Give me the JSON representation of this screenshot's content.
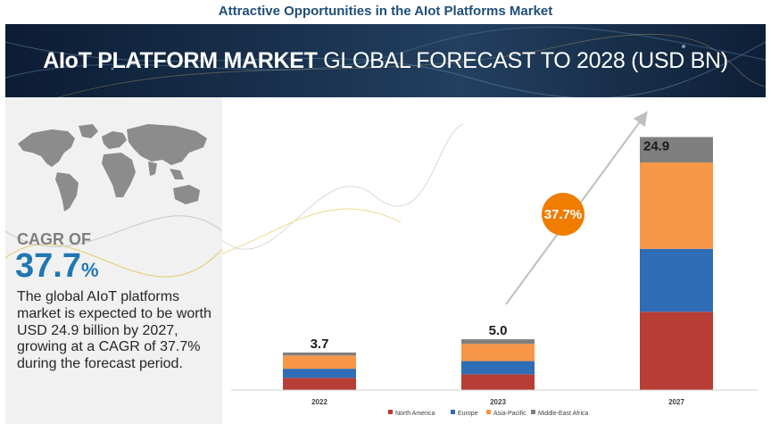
{
  "page": {
    "top_title": "Attractive Opportunities in the AIot Platforms Market",
    "banner_title_bold": "AIoT PLATFORM MARKET",
    "banner_title_rest": "GLOBAL FORECAST TO 2028 (USD BN)"
  },
  "sidebar": {
    "cagr_label": "CAGR OF",
    "cagr_number": "37.7",
    "cagr_percent": "%",
    "description": "The global AIoT platforms market is expected to be worth USD 24.9 billion by 2027, growing at a CAGR of 37.7% during the forecast period.",
    "map_icon": "world-map-icon"
  },
  "chart_data": {
    "type": "bar",
    "stacked": true,
    "categories": [
      "2022",
      "2023",
      "2027"
    ],
    "totals": [
      "3.7",
      "5.0",
      "24.9"
    ],
    "series": [
      {
        "name": "North America",
        "color": "#b83d34",
        "values": [
          1.2,
          1.55,
          7.7
        ]
      },
      {
        "name": "Europe",
        "color": "#2f6db5",
        "values": [
          0.9,
          1.3,
          6.2
        ]
      },
      {
        "name": "Asia-Pacific",
        "color": "#f79646",
        "values": [
          1.3,
          1.7,
          8.5
        ]
      },
      {
        "name": "Middle-East Africa",
        "color": "#7f7f7f",
        "values": [
          0.3,
          0.45,
          2.5
        ]
      }
    ],
    "ylim": [
      0,
      26
    ],
    "cagr_badge": "37.7%",
    "cagr_badge_color": "#f07c00",
    "legend_position": "bottom-right",
    "grid": false
  }
}
